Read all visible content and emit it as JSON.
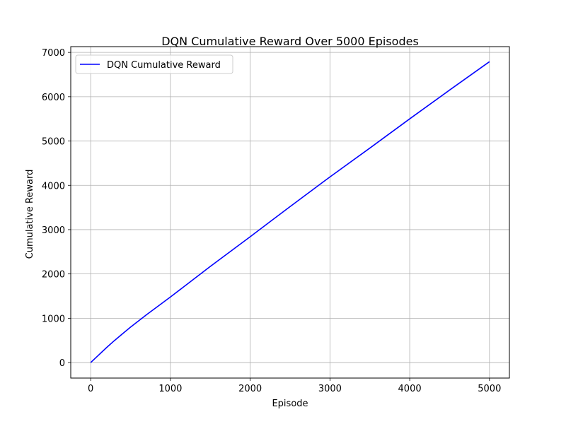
{
  "chart_data": {
    "type": "line",
    "title": "DQN Cumulative Reward Over 5000 Episodes",
    "xlabel": "Episode",
    "ylabel": "Cumulative Reward",
    "xlim": [
      -250,
      5250
    ],
    "ylim": [
      -350,
      7130
    ],
    "xticks": [
      0,
      1000,
      2000,
      3000,
      4000,
      5000
    ],
    "yticks": [
      0,
      1000,
      2000,
      3000,
      4000,
      5000,
      6000,
      7000
    ],
    "grid": true,
    "legend_position": "top-left",
    "series": [
      {
        "name": "DQN Cumulative Reward",
        "color": "#0000ff",
        "x": [
          0,
          100,
          200,
          300,
          400,
          500,
          700,
          1000,
          1500,
          2000,
          2500,
          3000,
          3500,
          4000,
          4500,
          5000
        ],
        "y": [
          0,
          170,
          340,
          500,
          650,
          800,
          1080,
          1480,
          2170,
          2840,
          3520,
          4190,
          4840,
          5500,
          6150,
          6790
        ]
      }
    ]
  }
}
